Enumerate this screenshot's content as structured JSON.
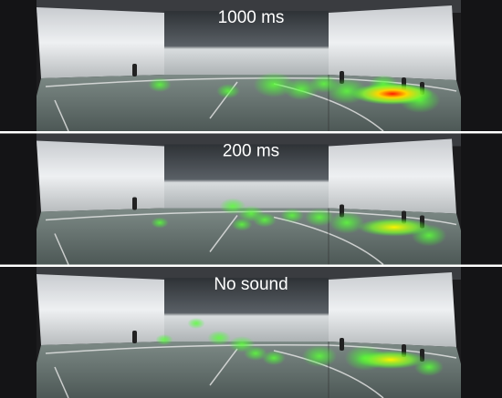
{
  "panels": [
    {
      "label": "1000 ms"
    },
    {
      "label": "200 ms"
    },
    {
      "label": "No sound"
    }
  ]
}
